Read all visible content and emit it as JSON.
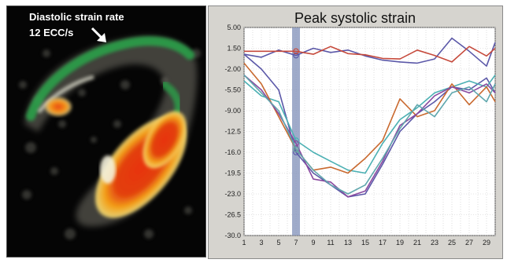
{
  "left_panel": {
    "title": "Diastolic strain rate",
    "subtitle": "12 ECC/s"
  },
  "chart_data": {
    "type": "line",
    "title": "Peak systolic strain",
    "xlabel": "",
    "ylabel": "",
    "x_ticks": [
      "1",
      "3",
      "5",
      "7",
      "9",
      "11",
      "13",
      "15",
      "17",
      "19",
      "21",
      "23",
      "25",
      "27",
      "29"
    ],
    "y_ticks": [
      "5.00",
      "1.50",
      "-2.00",
      "-5.50",
      "-9.00",
      "-12.5",
      "-16.0",
      "-19.5",
      "-23.0",
      "-26.5",
      "-30.0"
    ],
    "xlim": [
      1,
      30
    ],
    "ylim": [
      -30,
      5
    ],
    "grid": true,
    "highlight_x": 7,
    "series": [
      {
        "color": "#5b58a8",
        "x": [
          1,
          3,
          5,
          7,
          9,
          11,
          13,
          15,
          17,
          19,
          21,
          23,
          25,
          27,
          29,
          30
        ],
        "y": [
          0.5,
          0.0,
          1.2,
          0.3,
          1.5,
          0.8,
          1.2,
          0.2,
          -0.5,
          -0.8,
          -1.0,
          -0.3,
          3.2,
          1.0,
          -1.5,
          2.5
        ]
      },
      {
        "color": "#c64a3c",
        "x": [
          1,
          3,
          5,
          7,
          9,
          11,
          13,
          15,
          17,
          19,
          21,
          23,
          25,
          27,
          29,
          30
        ],
        "y": [
          1.0,
          1.0,
          1.0,
          1.0,
          0.5,
          1.8,
          0.6,
          0.4,
          -0.2,
          -0.3,
          1.2,
          0.3,
          -0.8,
          1.8,
          0.2,
          1.5
        ]
      },
      {
        "color": "#5b58a8",
        "x": [
          1,
          3,
          5,
          7,
          9,
          11,
          13,
          15,
          17,
          19,
          21,
          23,
          25,
          27,
          29,
          30
        ],
        "y": [
          0.5,
          -2.0,
          -5.5,
          -16.0,
          -19.5,
          -21.5,
          -23.5,
          -23.0,
          -18.0,
          -12.5,
          -9.5,
          -7.5,
          -5.0,
          -5.5,
          -3.5,
          -6.0
        ]
      },
      {
        "color": "#4bb0b3",
        "x": [
          1,
          3,
          5,
          7,
          9,
          11,
          13,
          15,
          17,
          19,
          21,
          23,
          25,
          27,
          29,
          30
        ],
        "y": [
          -4.0,
          -6.5,
          -7.5,
          -14.0,
          -16.0,
          -17.5,
          -19.0,
          -19.5,
          -14.5,
          -10.5,
          -8.5,
          -6.0,
          -5.0,
          -4.0,
          -5.0,
          -3.0
        ]
      },
      {
        "color": "#c9692f",
        "x": [
          1,
          3,
          5,
          7,
          9,
          11,
          13,
          15,
          17,
          19,
          21,
          23,
          25,
          27,
          29,
          30
        ],
        "y": [
          -1.0,
          -4.5,
          -10.0,
          -15.5,
          -19.0,
          -18.5,
          -19.5,
          -17.0,
          -14.0,
          -7.0,
          -10.0,
          -9.0,
          -4.5,
          -8.0,
          -5.0,
          -7.5
        ]
      },
      {
        "color": "#8a4aa0",
        "x": [
          1,
          3,
          5,
          7,
          9,
          11,
          13,
          15,
          17,
          19,
          21,
          23,
          25,
          27,
          29,
          30
        ],
        "y": [
          -3.0,
          -5.5,
          -9.5,
          -14.5,
          -20.5,
          -21.0,
          -23.5,
          -22.5,
          -17.5,
          -11.5,
          -9.5,
          -6.5,
          -5.0,
          -6.0,
          -4.5,
          -6.0
        ]
      },
      {
        "color": "#5fa7ad",
        "x": [
          1,
          3,
          5,
          7,
          9,
          11,
          13,
          15,
          17,
          19,
          21,
          23,
          25,
          27,
          29,
          30
        ],
        "y": [
          -3.0,
          -6.0,
          -9.0,
          -15.5,
          -19.0,
          -21.5,
          -23.0,
          -21.5,
          -17.0,
          -12.0,
          -8.0,
          -10.0,
          -6.0,
          -5.0,
          -7.5,
          -4.5
        ]
      }
    ]
  }
}
